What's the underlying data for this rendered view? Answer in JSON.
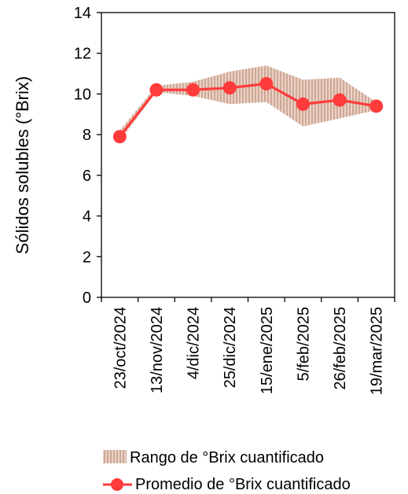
{
  "chart_data": {
    "type": "line",
    "x": [
      "23/oct/2024",
      "13/nov/2024",
      "4/dic/2024",
      "25/dic/2024",
      "15/ene/2025",
      "5/feb/2025",
      "26/feb/2025",
      "19/mar/2025"
    ],
    "series": [
      {
        "name": "Promedio de °Brix cuantificado",
        "kind": "line",
        "values": [
          7.9,
          10.2,
          10.2,
          10.3,
          10.5,
          9.5,
          9.7,
          9.4
        ]
      },
      {
        "name": "Rango de °Brix cuantificado",
        "kind": "range",
        "low": [
          7.7,
          10.1,
          9.9,
          9.5,
          9.6,
          8.4,
          8.8,
          9.2
        ],
        "high": [
          8.2,
          10.4,
          10.6,
          11.1,
          11.4,
          10.7,
          10.8,
          9.6
        ]
      }
    ],
    "xlabel": "",
    "ylabel": "Sólidos solubles (°Brix)",
    "ylim": [
      0,
      14
    ],
    "yticks": [
      "0",
      "2",
      "4",
      "6",
      "8",
      "10",
      "12",
      "14"
    ],
    "grid": false,
    "legend_position": "bottom",
    "colors": {
      "line": "#ff3b3b",
      "band_fill": "#e8c9bb",
      "band_hatch": "#c59b86",
      "axis": "#000000"
    }
  }
}
